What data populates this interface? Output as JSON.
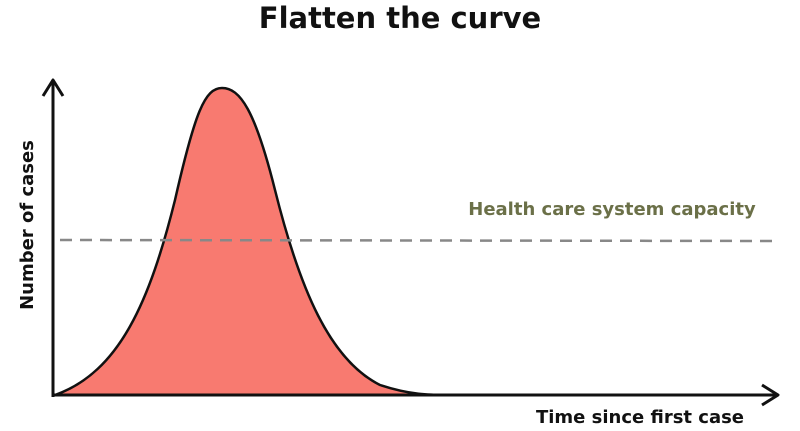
{
  "title": "Flatten the curve",
  "y_axis_label": "Number of cases",
  "x_axis_label": "Time since first case",
  "capacity_label": "Health care system capacity"
}
